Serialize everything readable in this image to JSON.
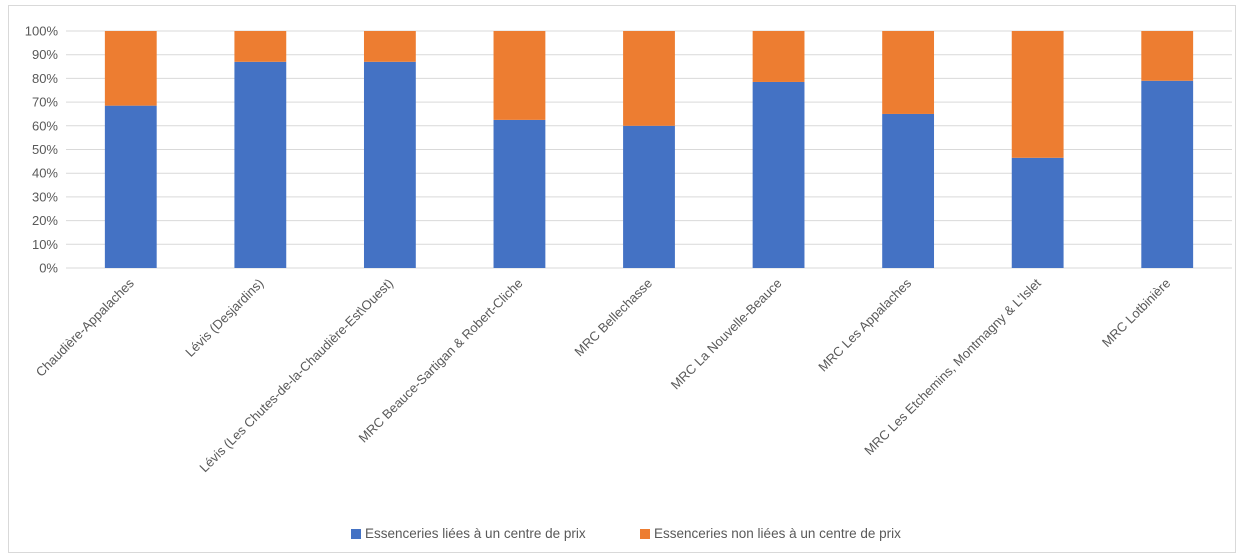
{
  "chart_data": {
    "type": "bar",
    "stacked": "percent",
    "categories": [
      "Chaudière-Appalaches",
      "Lévis (Desjardins)",
      "Lévis (Les Chutes-de-la-Chaudière-Est\\Ouest)",
      "MRC Beauce-Sartigan & Robert-Cliche",
      "MRC Bellechasse",
      "MRC La Nouvelle-Beauce",
      "MRC Les Appalaches",
      "MRC Les Etchemins, Montmagny & L'Islet",
      "MRC Lotbinière"
    ],
    "series": [
      {
        "name": "Essenceries liées à un centre de prix",
        "color": "#4472C4",
        "values": [
          68.5,
          87,
          87,
          62.5,
          60,
          78.5,
          65,
          46.5,
          79
        ]
      },
      {
        "name": "Essenceries non liées à un centre de prix",
        "color": "#ED7D31",
        "values": [
          31.5,
          13,
          13,
          37.5,
          40,
          21.5,
          35,
          53.5,
          21
        ]
      }
    ],
    "y_ticks": [
      "0%",
      "10%",
      "20%",
      "30%",
      "40%",
      "50%",
      "60%",
      "70%",
      "80%",
      "90%",
      "100%"
    ],
    "ylim": [
      0,
      100
    ],
    "grid": true,
    "legend_position": "bottom",
    "title": "",
    "xlabel": "",
    "ylabel": ""
  }
}
